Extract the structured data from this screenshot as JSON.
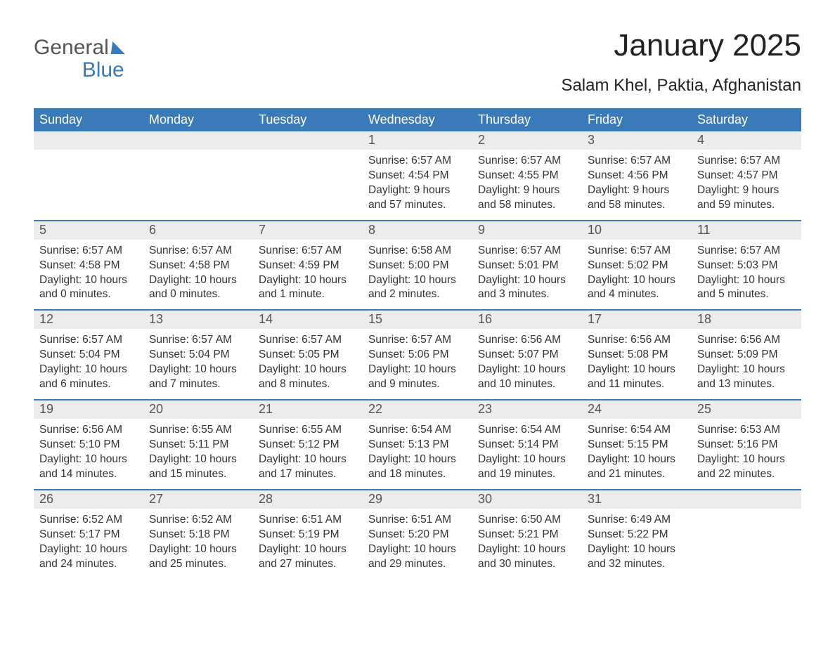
{
  "logo": {
    "word1": "General",
    "word2": "Blue"
  },
  "title": "January 2025",
  "location": "Salam Khel, Paktia, Afghanistan",
  "colors": {
    "header_bg": "#3a7ab8",
    "header_text": "#ffffff",
    "daynum_bg": "#ececec",
    "daynum_text": "#555555",
    "body_text": "#333333",
    "divider": "#3a7ab8",
    "page_bg": "#ffffff",
    "logo_gray": "#555555",
    "logo_blue": "#3a7ab8"
  },
  "layout": {
    "columns": 7,
    "column_headers_fontsize": 18,
    "daynum_fontsize": 18,
    "body_fontsize": 15.5,
    "title_fontsize": 44,
    "location_fontsize": 24
  },
  "weekdays": [
    "Sunday",
    "Monday",
    "Tuesday",
    "Wednesday",
    "Thursday",
    "Friday",
    "Saturday"
  ],
  "weeks": [
    [
      {
        "n": "",
        "sr": "",
        "ss": "",
        "dl": ""
      },
      {
        "n": "",
        "sr": "",
        "ss": "",
        "dl": ""
      },
      {
        "n": "",
        "sr": "",
        "ss": "",
        "dl": ""
      },
      {
        "n": "1",
        "sr": "6:57 AM",
        "ss": "4:54 PM",
        "dl": "9 hours and 57 minutes."
      },
      {
        "n": "2",
        "sr": "6:57 AM",
        "ss": "4:55 PM",
        "dl": "9 hours and 58 minutes."
      },
      {
        "n": "3",
        "sr": "6:57 AM",
        "ss": "4:56 PM",
        "dl": "9 hours and 58 minutes."
      },
      {
        "n": "4",
        "sr": "6:57 AM",
        "ss": "4:57 PM",
        "dl": "9 hours and 59 minutes."
      }
    ],
    [
      {
        "n": "5",
        "sr": "6:57 AM",
        "ss": "4:58 PM",
        "dl": "10 hours and 0 minutes."
      },
      {
        "n": "6",
        "sr": "6:57 AM",
        "ss": "4:58 PM",
        "dl": "10 hours and 0 minutes."
      },
      {
        "n": "7",
        "sr": "6:57 AM",
        "ss": "4:59 PM",
        "dl": "10 hours and 1 minute."
      },
      {
        "n": "8",
        "sr": "6:58 AM",
        "ss": "5:00 PM",
        "dl": "10 hours and 2 minutes."
      },
      {
        "n": "9",
        "sr": "6:57 AM",
        "ss": "5:01 PM",
        "dl": "10 hours and 3 minutes."
      },
      {
        "n": "10",
        "sr": "6:57 AM",
        "ss": "5:02 PM",
        "dl": "10 hours and 4 minutes."
      },
      {
        "n": "11",
        "sr": "6:57 AM",
        "ss": "5:03 PM",
        "dl": "10 hours and 5 minutes."
      }
    ],
    [
      {
        "n": "12",
        "sr": "6:57 AM",
        "ss": "5:04 PM",
        "dl": "10 hours and 6 minutes."
      },
      {
        "n": "13",
        "sr": "6:57 AM",
        "ss": "5:04 PM",
        "dl": "10 hours and 7 minutes."
      },
      {
        "n": "14",
        "sr": "6:57 AM",
        "ss": "5:05 PM",
        "dl": "10 hours and 8 minutes."
      },
      {
        "n": "15",
        "sr": "6:57 AM",
        "ss": "5:06 PM",
        "dl": "10 hours and 9 minutes."
      },
      {
        "n": "16",
        "sr": "6:56 AM",
        "ss": "5:07 PM",
        "dl": "10 hours and 10 minutes."
      },
      {
        "n": "17",
        "sr": "6:56 AM",
        "ss": "5:08 PM",
        "dl": "10 hours and 11 minutes."
      },
      {
        "n": "18",
        "sr": "6:56 AM",
        "ss": "5:09 PM",
        "dl": "10 hours and 13 minutes."
      }
    ],
    [
      {
        "n": "19",
        "sr": "6:56 AM",
        "ss": "5:10 PM",
        "dl": "10 hours and 14 minutes."
      },
      {
        "n": "20",
        "sr": "6:55 AM",
        "ss": "5:11 PM",
        "dl": "10 hours and 15 minutes."
      },
      {
        "n": "21",
        "sr": "6:55 AM",
        "ss": "5:12 PM",
        "dl": "10 hours and 17 minutes."
      },
      {
        "n": "22",
        "sr": "6:54 AM",
        "ss": "5:13 PM",
        "dl": "10 hours and 18 minutes."
      },
      {
        "n": "23",
        "sr": "6:54 AM",
        "ss": "5:14 PM",
        "dl": "10 hours and 19 minutes."
      },
      {
        "n": "24",
        "sr": "6:54 AM",
        "ss": "5:15 PM",
        "dl": "10 hours and 21 minutes."
      },
      {
        "n": "25",
        "sr": "6:53 AM",
        "ss": "5:16 PM",
        "dl": "10 hours and 22 minutes."
      }
    ],
    [
      {
        "n": "26",
        "sr": "6:52 AM",
        "ss": "5:17 PM",
        "dl": "10 hours and 24 minutes."
      },
      {
        "n": "27",
        "sr": "6:52 AM",
        "ss": "5:18 PM",
        "dl": "10 hours and 25 minutes."
      },
      {
        "n": "28",
        "sr": "6:51 AM",
        "ss": "5:19 PM",
        "dl": "10 hours and 27 minutes."
      },
      {
        "n": "29",
        "sr": "6:51 AM",
        "ss": "5:20 PM",
        "dl": "10 hours and 29 minutes."
      },
      {
        "n": "30",
        "sr": "6:50 AM",
        "ss": "5:21 PM",
        "dl": "10 hours and 30 minutes."
      },
      {
        "n": "31",
        "sr": "6:49 AM",
        "ss": "5:22 PM",
        "dl": "10 hours and 32 minutes."
      },
      {
        "n": "",
        "sr": "",
        "ss": "",
        "dl": ""
      }
    ]
  ],
  "labels": {
    "sunrise": "Sunrise: ",
    "sunset": "Sunset: ",
    "daylight": "Daylight: "
  }
}
